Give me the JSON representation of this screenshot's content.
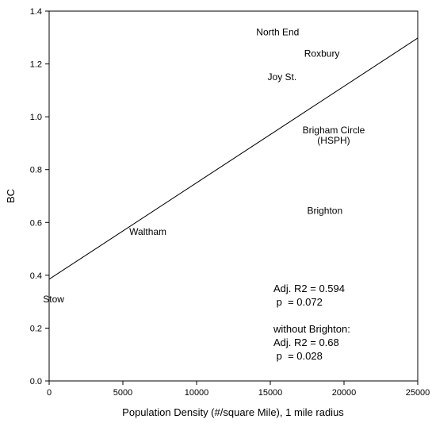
{
  "chart_data": {
    "type": "scatter",
    "title": "",
    "xlabel": "Population Density (#/square Mile), 1 mile radius",
    "ylabel": "BC",
    "xlim": [
      0,
      25000
    ],
    "ylim": [
      0.0,
      1.4
    ],
    "x_ticks": [
      "0",
      "5000",
      "10000",
      "15000",
      "20000",
      "25000"
    ],
    "y_ticks": [
      "0.0",
      "0.2",
      "0.4",
      "0.6",
      "0.8",
      "1.0",
      "1.2",
      "1.4"
    ],
    "grid": false,
    "points": [
      {
        "label": "North End",
        "x": 15500,
        "y": 1.32
      },
      {
        "label": "Roxbury",
        "x": 18500,
        "y": 1.24
      },
      {
        "label": "Joy St.",
        "x": 15800,
        "y": 1.15
      },
      {
        "label": "Brigham Circle",
        "label2": "(HSPH)",
        "x": 19300,
        "y": 0.95
      },
      {
        "label": "Brighton",
        "x": 18700,
        "y": 0.645
      },
      {
        "label": "Waltham",
        "x": 6700,
        "y": 0.565
      },
      {
        "label": "Stow",
        "x": 300,
        "y": 0.31
      }
    ],
    "regression_line": {
      "x": [
        0,
        25000
      ],
      "y": [
        0.385,
        1.298
      ]
    },
    "annotations": [
      "Adj. R2 = 0.594",
      " p  = 0.072",
      "without Brighton:",
      "Adj. R2 = 0.68",
      " p  = 0.028"
    ]
  }
}
